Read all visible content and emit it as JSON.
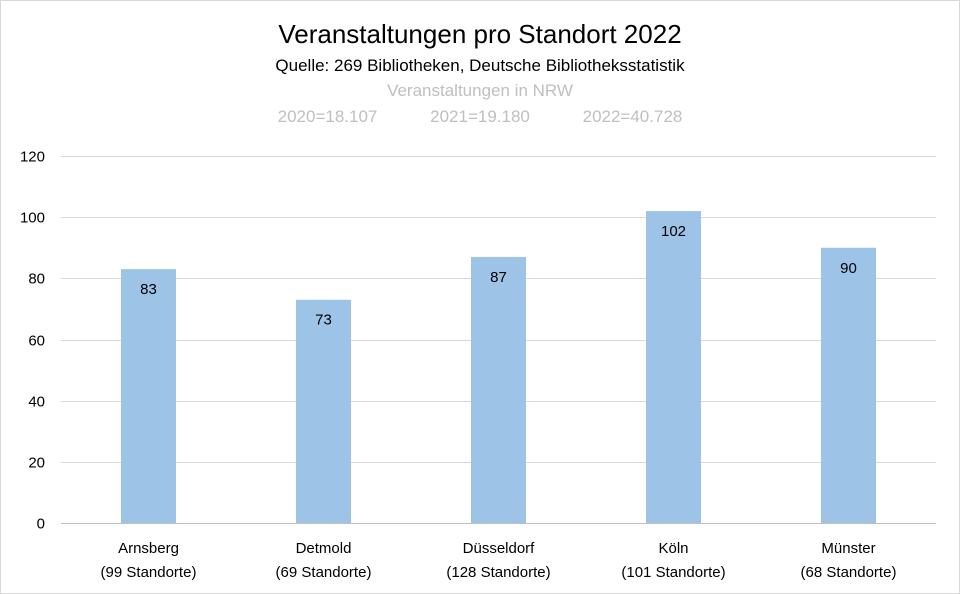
{
  "chart_data": {
    "type": "bar",
    "title": "Veranstaltungen pro Standort 2022",
    "subtitle": "Quelle: 269 Bibliotheken, Deutsche Bibliotheksstatistik",
    "note_title": "Veranstaltungen in NRW",
    "note_values": [
      "2020=18.107",
      "2021=19.180",
      "2022=40.728"
    ],
    "categories": [
      [
        "Arnsberg",
        "(99 Standorte)"
      ],
      [
        "Detmold",
        "(69 Standorte)"
      ],
      [
        "Düsseldorf",
        "(128 Standorte)"
      ],
      [
        "Köln",
        "(101 Standorte)"
      ],
      [
        "Münster",
        "(68 Standorte)"
      ]
    ],
    "values": [
      83,
      73,
      87,
      102,
      90
    ],
    "ylim": [
      0,
      120
    ],
    "yticks": [
      0,
      20,
      40,
      60,
      80,
      100,
      120
    ],
    "grid": true,
    "colors": {
      "bar": "#9dc3e6",
      "grid": "#d9d9d9",
      "axis": "#bfbfbf"
    }
  }
}
